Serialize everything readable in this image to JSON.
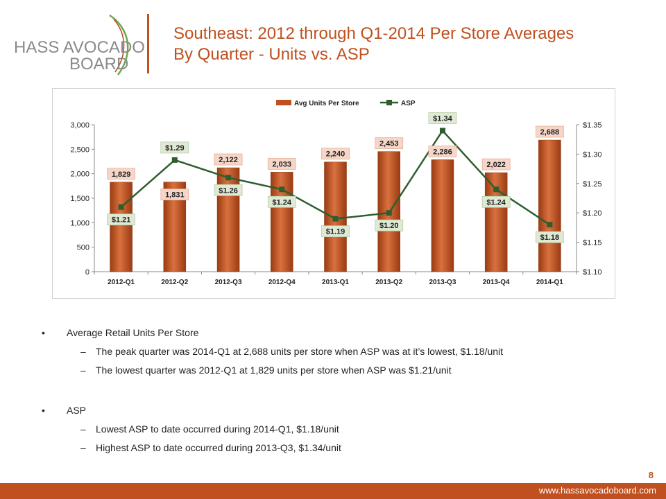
{
  "logo": {
    "line1": "HASS AVOCADO",
    "line2": "BOARD"
  },
  "title": {
    "line1": "Southeast: 2012 through Q1-2014 Per Store Averages",
    "line2": "By Quarter - Units vs. ASP"
  },
  "colors": {
    "accent": "#c0501f",
    "bar": "#c0501f",
    "line": "#2e5e2e"
  },
  "chart_data": {
    "type": "bar",
    "categories": [
      "2012-Q1",
      "2012-Q2",
      "2012-Q3",
      "2012-Q4",
      "2013-Q1",
      "2013-Q2",
      "2013-Q3",
      "2013-Q4",
      "2014-Q1"
    ],
    "series": [
      {
        "name": "Avg Units Per Store",
        "type": "bar",
        "axis": "left",
        "values": [
          1829,
          1831,
          2122,
          2033,
          2240,
          2453,
          2286,
          2022,
          2688
        ],
        "labels": [
          "1,829",
          "1,831",
          "2,122",
          "2,033",
          "2,240",
          "2,453",
          "2,286",
          "2,022",
          "2,688"
        ]
      },
      {
        "name": "ASP",
        "type": "line",
        "axis": "right",
        "values": [
          1.21,
          1.29,
          1.26,
          1.24,
          1.19,
          1.2,
          1.34,
          1.24,
          1.18
        ],
        "labels": [
          "$1.21",
          "$1.29",
          "$1.26",
          "$1.24",
          "$1.19",
          "$1.20",
          "$1.34",
          "$1.24",
          "$1.18"
        ]
      }
    ],
    "y_left": {
      "min": 0,
      "max": 3000,
      "ticks": [
        0,
        500,
        1000,
        1500,
        2000,
        2500,
        3000
      ],
      "tick_labels": [
        "0",
        "500",
        "1,000",
        "1,500",
        "2,000",
        "2,500",
        "3,000"
      ]
    },
    "y_right": {
      "min": 1.1,
      "max": 1.35,
      "ticks": [
        1.1,
        1.15,
        1.2,
        1.25,
        1.3,
        1.35
      ],
      "tick_labels": [
        "$1.10",
        "$1.15",
        "$1.20",
        "$1.25",
        "$1.30",
        "$1.35"
      ]
    },
    "legend_position": "top-center",
    "grid": false
  },
  "bullets": {
    "units": {
      "heading": "Average Retail Units Per Store",
      "items": [
        "The peak quarter was 2014-Q1 at 2,688 units per store when ASP was at it’s lowest, $1.18/unit",
        "The lowest quarter was 2012-Q1 at 1,829 units per store when ASP was $1.21/unit"
      ]
    },
    "asp": {
      "heading": "ASP",
      "items": [
        "Lowest ASP to date occurred during 2014-Q1, $1.18/unit",
        "Highest ASP to date occurred during 2013-Q3, $1.34/unit"
      ]
    }
  },
  "page_number": "8",
  "footer_url": "www.hassavocadoboard.com"
}
